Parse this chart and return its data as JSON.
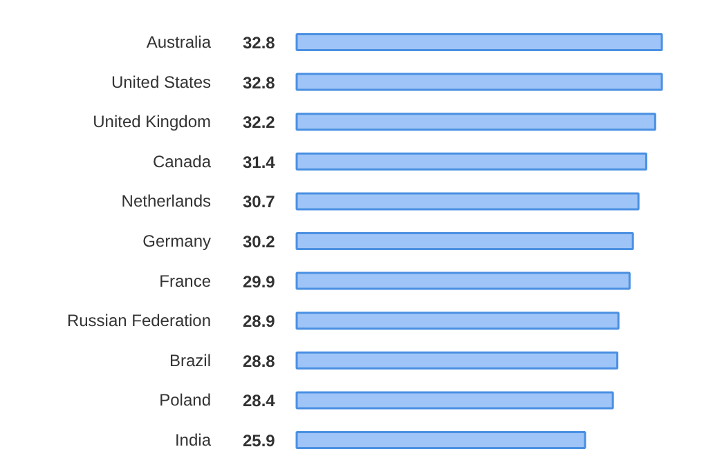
{
  "chart_data": {
    "type": "bar",
    "orientation": "horizontal",
    "categories": [
      "Australia",
      "United States",
      "United Kingdom",
      "Canada",
      "Netherlands",
      "Germany",
      "France",
      "Russian Federation",
      "Brazil",
      "Poland",
      "India"
    ],
    "values": [
      32.8,
      32.8,
      32.2,
      31.4,
      30.7,
      30.2,
      29.9,
      28.9,
      28.8,
      28.4,
      25.9
    ],
    "color": "#9fc4f7",
    "tick_labels": "y",
    "data_labels": true
  }
}
